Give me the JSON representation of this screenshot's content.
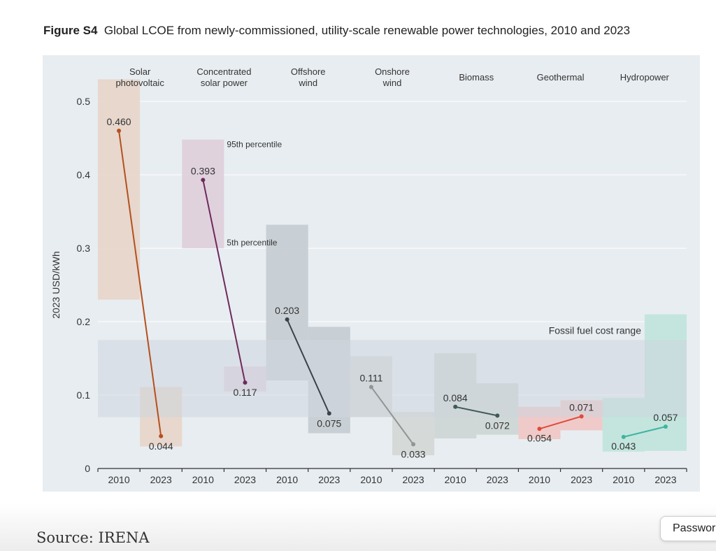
{
  "figure": {
    "label": "Figure S4",
    "title": "Global LCOE from newly-commissioned, utility-scale renewable power technologies, 2010 and 2023"
  },
  "source": "Source: IRENA",
  "password_chip": "Password",
  "chart_data": {
    "type": "range-bar with slope lines",
    "ylabel": "2023 USD/kWh",
    "ylim": [
      0,
      0.5
    ],
    "yticks": [
      "0",
      "0.1",
      "0.2",
      "0.3",
      "0.4",
      "0.5"
    ],
    "grid": true,
    "fossil_band": {
      "label": "Fossil fuel cost range",
      "low": 0.07,
      "high": 0.175,
      "color": "#cdd6de"
    },
    "annotations": {
      "p95": "95th percentile",
      "p5": "5th percentile"
    },
    "technologies": [
      {
        "name": "Solar photovoltaic",
        "label_lines": [
          "Solar",
          "photovoltaic"
        ],
        "color": "#b5501d",
        "band": "#e6d5ca",
        "years": [
          "2010",
          "2023"
        ],
        "values": [
          0.46,
          0.044
        ],
        "labels": [
          "0.460",
          "0.044"
        ],
        "p5": [
          0.23,
          0.03
        ],
        "p95": [
          0.53,
          0.111
        ]
      },
      {
        "name": "Concentrated solar power",
        "label_lines": [
          "Concentrated",
          "solar power"
        ],
        "color": "#6e2a5c",
        "band": "#ddcfdb",
        "years": [
          "2010",
          "2023"
        ],
        "values": [
          0.393,
          0.117
        ],
        "labels": [
          "0.393",
          "0.117"
        ],
        "p5": [
          0.3,
          0.105
        ],
        "p95": [
          0.448,
          0.139
        ]
      },
      {
        "name": "Offshore wind",
        "label_lines": [
          "Offshore",
          "wind"
        ],
        "color": "#3b4249",
        "band": "#c6cdd3",
        "years": [
          "2010",
          "2023"
        ],
        "values": [
          0.203,
          0.075
        ],
        "labels": [
          "0.203",
          "0.075"
        ],
        "p5": [
          0.12,
          0.048
        ],
        "p95": [
          0.332,
          0.193
        ]
      },
      {
        "name": "Onshore wind",
        "label_lines": [
          "Onshore",
          "wind"
        ],
        "color": "#8f9693",
        "band": "#d3d8d6",
        "years": [
          "2010",
          "2023"
        ],
        "values": [
          0.111,
          0.033
        ],
        "labels": [
          "0.111",
          "0.033"
        ],
        "p5": [
          0.07,
          0.018
        ],
        "p95": [
          0.153,
          0.077
        ]
      },
      {
        "name": "Biomass",
        "label_lines": [
          "Biomass"
        ],
        "color": "#3f5a55",
        "band": "#ccd6d4",
        "years": [
          "2010",
          "2023"
        ],
        "values": [
          0.084,
          0.072
        ],
        "labels": [
          "0.084",
          "0.072"
        ],
        "p5": [
          0.041,
          0.046
        ],
        "p95": [
          0.157,
          0.116
        ]
      },
      {
        "name": "Geothermal",
        "label_lines": [
          "Geothermal"
        ],
        "color": "#e04a3a",
        "band": "#efc7c4",
        "years": [
          "2010",
          "2023"
        ],
        "values": [
          0.054,
          0.071
        ],
        "labels": [
          "0.054",
          "0.071"
        ],
        "p5": [
          0.04,
          0.052
        ],
        "p95": [
          0.084,
          0.093
        ]
      },
      {
        "name": "Hydropower",
        "label_lines": [
          "Hydropower"
        ],
        "color": "#3db5a0",
        "band": "#bfe4dc",
        "years": [
          "2010",
          "2023"
        ],
        "values": [
          0.043,
          0.057
        ],
        "labels": [
          "0.043",
          "0.057"
        ],
        "p5": [
          0.023,
          0.024
        ],
        "p95": [
          0.096,
          0.21
        ]
      }
    ]
  }
}
